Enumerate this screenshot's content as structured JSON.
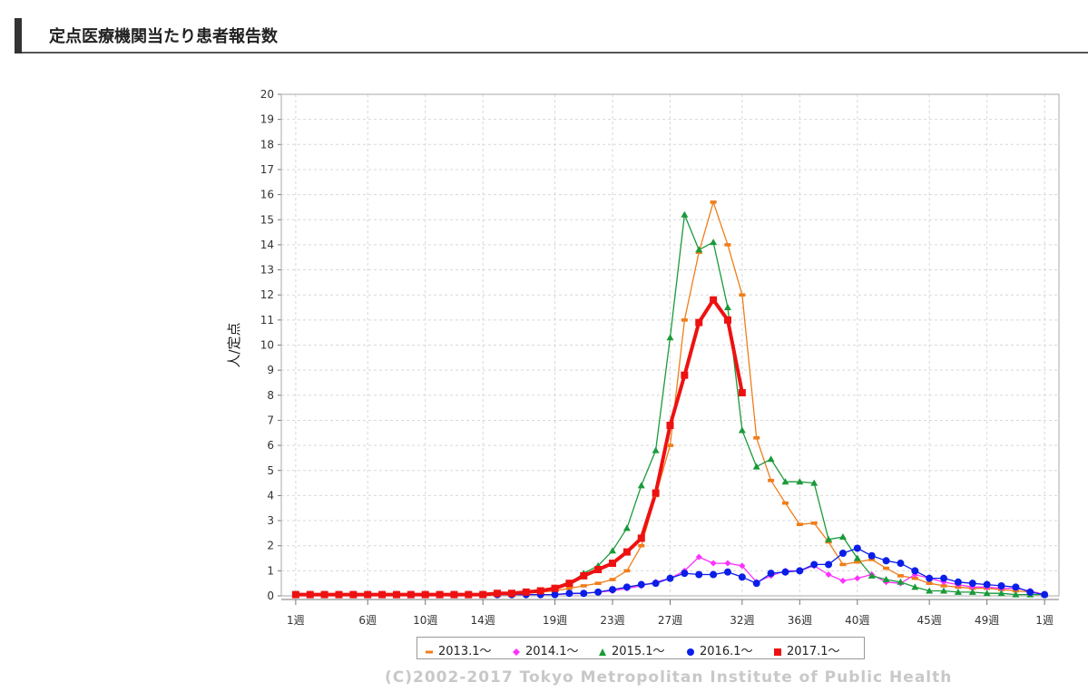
{
  "header": {
    "title": "定点医療機関当たり患者報告数"
  },
  "copyright": "(C)2002-2017 Tokyo Metropolitan Institute of Public Health",
  "chart_data": {
    "type": "line",
    "title": "",
    "ylabel": "人/定点",
    "xlabel": "",
    "ylim": [
      0,
      20
    ],
    "yticks": [
      0,
      1,
      2,
      3,
      4,
      5,
      6,
      7,
      8,
      9,
      10,
      11,
      12,
      13,
      14,
      15,
      16,
      17,
      18,
      19,
      20
    ],
    "x_tick_positions": [
      1,
      6,
      10,
      14,
      19,
      23,
      27,
      32,
      36,
      40,
      45,
      49,
      53
    ],
    "x_tick_labels": [
      "1週",
      "6週",
      "10週",
      "14週",
      "19週",
      "23週",
      "27週",
      "32週",
      "36週",
      "40週",
      "45週",
      "49週",
      "1週"
    ],
    "xlim": [
      0,
      54
    ],
    "grid": true,
    "legend_position": "bottom",
    "series": [
      {
        "name": "2013.1～",
        "color": "#f07d1a",
        "marker": "dash",
        "x": [
          1,
          2,
          3,
          4,
          5,
          6,
          7,
          8,
          9,
          10,
          11,
          12,
          13,
          14,
          15,
          16,
          17,
          18,
          19,
          20,
          21,
          22,
          23,
          24,
          25,
          26,
          27,
          28,
          29,
          30,
          31,
          32,
          33,
          34,
          35,
          36,
          37,
          38,
          39,
          40,
          41,
          42,
          43,
          44,
          45,
          46,
          47,
          48,
          49,
          50,
          51,
          52,
          53
        ],
        "values": [
          0.05,
          0.05,
          0.05,
          0.05,
          0.05,
          0.05,
          0.05,
          0.05,
          0.05,
          0.05,
          0.05,
          0.05,
          0.05,
          0.05,
          0.05,
          0.1,
          0.1,
          0.15,
          0.2,
          0.3,
          0.4,
          0.5,
          0.65,
          1.0,
          2.0,
          4.0,
          6.0,
          11.0,
          13.7,
          15.7,
          14.0,
          12.0,
          6.3,
          4.6,
          3.7,
          2.85,
          2.9,
          2.15,
          1.25,
          1.35,
          1.45,
          1.1,
          0.8,
          0.7,
          0.5,
          0.4,
          0.35,
          0.3,
          0.3,
          0.25,
          0.2,
          0.15,
          0.05
        ]
      },
      {
        "name": "2014.1～",
        "color": "#ff30ff",
        "marker": "diamond",
        "x": [
          1,
          2,
          3,
          4,
          5,
          6,
          7,
          8,
          9,
          10,
          11,
          12,
          13,
          14,
          15,
          16,
          17,
          18,
          19,
          20,
          21,
          22,
          23,
          24,
          25,
          26,
          27,
          28,
          29,
          30,
          31,
          32,
          33,
          34,
          35,
          36,
          37,
          38,
          39,
          40,
          41,
          42,
          43,
          44,
          45,
          46,
          47,
          48,
          49,
          50,
          51,
          52,
          53
        ],
        "values": [
          0.05,
          0.05,
          0.05,
          0.05,
          0.05,
          0.05,
          0.05,
          0.05,
          0.05,
          0.05,
          0.05,
          0.05,
          0.05,
          0.05,
          0.05,
          0.05,
          0.05,
          0.05,
          0.05,
          0.08,
          0.1,
          0.15,
          0.2,
          0.3,
          0.4,
          0.55,
          0.7,
          1.0,
          1.55,
          1.3,
          1.3,
          1.2,
          0.55,
          0.8,
          1.0,
          1.0,
          1.2,
          0.85,
          0.6,
          0.7,
          0.85,
          0.55,
          0.5,
          0.85,
          0.7,
          0.55,
          0.45,
          0.35,
          0.35,
          0.3,
          0.3,
          0.2,
          0.05
        ]
      },
      {
        "name": "2015.1～",
        "color": "#1a9a3a",
        "marker": "triangle",
        "x": [
          1,
          2,
          3,
          4,
          5,
          6,
          7,
          8,
          9,
          10,
          11,
          12,
          13,
          14,
          15,
          16,
          17,
          18,
          19,
          20,
          21,
          22,
          23,
          24,
          25,
          26,
          27,
          28,
          29,
          30,
          31,
          32,
          33,
          34,
          35,
          36,
          37,
          38,
          39,
          40,
          41,
          42,
          43,
          44,
          45,
          46,
          47,
          48,
          49,
          50,
          51,
          52,
          53
        ],
        "values": [
          0.05,
          0.05,
          0.05,
          0.05,
          0.05,
          0.05,
          0.05,
          0.05,
          0.05,
          0.05,
          0.05,
          0.05,
          0.05,
          0.05,
          0.1,
          0.1,
          0.15,
          0.2,
          0.3,
          0.5,
          0.9,
          1.2,
          1.8,
          2.7,
          4.4,
          5.8,
          10.3,
          15.2,
          13.8,
          14.1,
          11.5,
          6.6,
          5.15,
          5.45,
          4.55,
          4.55,
          4.5,
          2.25,
          2.35,
          1.5,
          0.8,
          0.65,
          0.55,
          0.35,
          0.2,
          0.2,
          0.15,
          0.15,
          0.1,
          0.1,
          0.05,
          0.05,
          0.05
        ]
      },
      {
        "name": "2016.1～",
        "color": "#0a1ee8",
        "marker": "circle",
        "x": [
          1,
          2,
          3,
          4,
          5,
          6,
          7,
          8,
          9,
          10,
          11,
          12,
          13,
          14,
          15,
          16,
          17,
          18,
          19,
          20,
          21,
          22,
          23,
          24,
          25,
          26,
          27,
          28,
          29,
          30,
          31,
          32,
          33,
          34,
          35,
          36,
          37,
          38,
          39,
          40,
          41,
          42,
          43,
          44,
          45,
          46,
          47,
          48,
          49,
          50,
          51,
          52,
          53
        ],
        "values": [
          0.05,
          0.05,
          0.05,
          0.05,
          0.05,
          0.05,
          0.05,
          0.05,
          0.05,
          0.05,
          0.05,
          0.05,
          0.05,
          0.05,
          0.05,
          0.05,
          0.05,
          0.05,
          0.05,
          0.1,
          0.1,
          0.15,
          0.25,
          0.35,
          0.45,
          0.5,
          0.7,
          0.9,
          0.85,
          0.85,
          0.95,
          0.75,
          0.5,
          0.9,
          0.95,
          1.0,
          1.25,
          1.25,
          1.7,
          1.9,
          1.6,
          1.4,
          1.3,
          1.0,
          0.7,
          0.7,
          0.55,
          0.5,
          0.45,
          0.4,
          0.35,
          0.15,
          0.05
        ]
      },
      {
        "name": "2017.1～",
        "color": "#ee1111",
        "marker": "square",
        "bold": true,
        "x": [
          1,
          2,
          3,
          4,
          5,
          6,
          7,
          8,
          9,
          10,
          11,
          12,
          13,
          14,
          15,
          16,
          17,
          18,
          19,
          20,
          21,
          22,
          23,
          24,
          25,
          26,
          27,
          28,
          29,
          30,
          31,
          32
        ],
        "values": [
          0.05,
          0.05,
          0.05,
          0.05,
          0.05,
          0.05,
          0.05,
          0.05,
          0.05,
          0.05,
          0.05,
          0.05,
          0.05,
          0.05,
          0.1,
          0.1,
          0.15,
          0.2,
          0.3,
          0.5,
          0.8,
          1.05,
          1.3,
          1.75,
          2.3,
          4.1,
          6.8,
          8.8,
          10.9,
          11.8,
          11.0,
          8.1
        ]
      }
    ]
  }
}
